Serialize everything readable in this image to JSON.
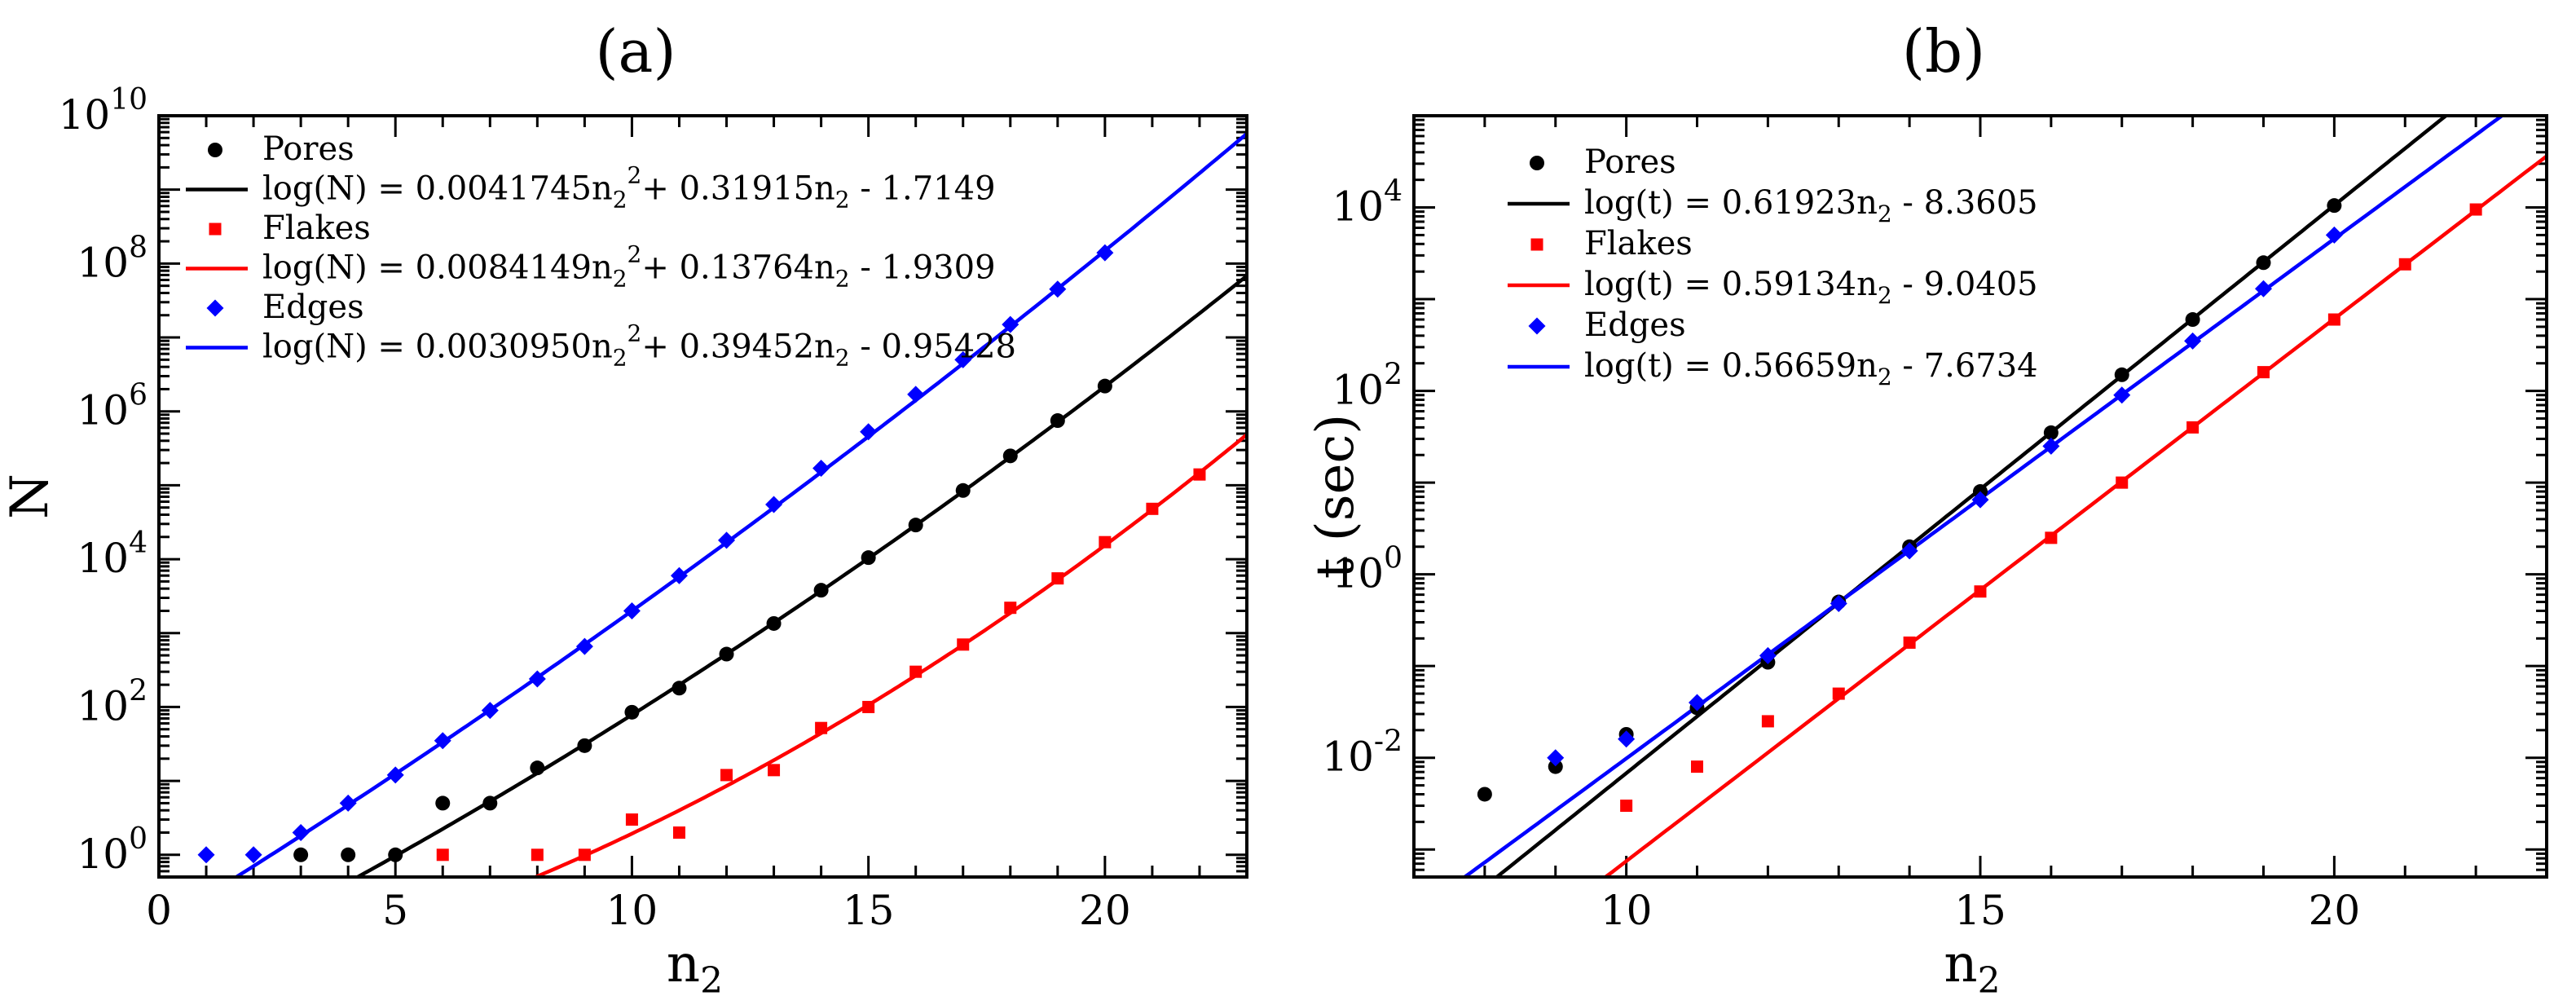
{
  "chart_data": [
    {
      "type": "scatter",
      "panel_label": "(a)",
      "xlabel": "n",
      "xlabel_sub": "2",
      "ylabel": "N",
      "y_scale": "log",
      "xlim": [
        0,
        23
      ],
      "ylim_exp": [
        -0.3,
        10
      ],
      "x_ticks": [
        0,
        5,
        10,
        15,
        20
      ],
      "y_tick_exps": [
        0,
        2,
        4,
        6,
        8,
        10
      ],
      "colors": {
        "Pores": "#000000",
        "Flakes": "#ff0000",
        "Edges": "#0000ff"
      },
      "legend": [
        {
          "name": "Pores",
          "kind": "marker",
          "marker": "circle"
        },
        {
          "name": "log(N) = 0.0041745n2^2 + 0.31915n2 - 1.7149",
          "kind": "line",
          "series": "Pores",
          "fit_pre": "log(N) = 0.0041745n",
          "fit_sup": "2",
          "fit_post": "+ 0.31915n",
          "fit_post2": " - 1.7149"
        },
        {
          "name": "Flakes",
          "kind": "marker",
          "marker": "square"
        },
        {
          "name": "log(N) = 0.0084149n2^2 + 0.13764n2 - 1.9309",
          "kind": "line",
          "series": "Flakes",
          "fit_pre": "log(N) = 0.0084149n",
          "fit_sup": "2",
          "fit_post": "+ 0.13764n",
          "fit_post2": " - 1.9309"
        },
        {
          "name": "Edges",
          "kind": "marker",
          "marker": "diamond"
        },
        {
          "name": "log(N) = 0.0030950n2^2 + 0.39452n2 - 0.95428",
          "kind": "line",
          "series": "Edges",
          "fit_pre": "log(N) = 0.0030950n",
          "fit_sup": "2",
          "fit_post": "+ 0.39452n",
          "fit_post2": " - 0.95428"
        }
      ],
      "series": [
        {
          "name": "Pores",
          "marker": "circle",
          "points": [
            [
              3,
              1
            ],
            [
              4,
              1
            ],
            [
              5,
              1
            ],
            [
              6,
              5
            ],
            [
              7,
              5
            ],
            [
              8,
              15
            ],
            [
              9,
              30
            ],
            [
              10,
              85
            ],
            [
              11,
              180
            ],
            [
              12,
              520
            ],
            [
              13,
              1350
            ],
            [
              14,
              3800
            ],
            [
              15,
              10500
            ],
            [
              16,
              29000
            ],
            [
              17,
              85000
            ],
            [
              18,
              250000
            ],
            [
              19,
              750000
            ],
            [
              20,
              2200000
            ]
          ]
        },
        {
          "name": "Flakes",
          "marker": "square",
          "points": [
            [
              6,
              1
            ],
            [
              8,
              1
            ],
            [
              9,
              1
            ],
            [
              10,
              3
            ],
            [
              11,
              2
            ],
            [
              12,
              12
            ],
            [
              13,
              14
            ],
            [
              14,
              52
            ],
            [
              15,
              100
            ],
            [
              16,
              300
            ],
            [
              17,
              700
            ],
            [
              18,
              2200
            ],
            [
              19,
              5500
            ],
            [
              20,
              17000
            ],
            [
              21,
              48000
            ],
            [
              22,
              140000
            ]
          ]
        },
        {
          "name": "Edges",
          "marker": "diamond",
          "points": [
            [
              1,
              1
            ],
            [
              2,
              1
            ],
            [
              3,
              2
            ],
            [
              4,
              5
            ],
            [
              5,
              12
            ],
            [
              6,
              35
            ],
            [
              7,
              90
            ],
            [
              8,
              240
            ],
            [
              9,
              660
            ],
            [
              10,
              2000
            ],
            [
              11,
              6000
            ],
            [
              12,
              18000
            ],
            [
              13,
              55000
            ],
            [
              14,
              170000
            ],
            [
              15,
              530000
            ],
            [
              16,
              1700000
            ],
            [
              17,
              5000000
            ],
            [
              18,
              15000000
            ],
            [
              19,
              45000000
            ],
            [
              20,
              140000000
            ]
          ]
        }
      ],
      "fits": [
        {
          "series": "Pores",
          "form": "quadratic_log10",
          "coef": [
            0.0041745,
            0.31915,
            -1.7149
          ],
          "x_range": [
            3.8,
            23
          ]
        },
        {
          "series": "Flakes",
          "form": "quadratic_log10",
          "coef": [
            0.0084149,
            0.13764,
            -1.9309
          ],
          "x_range": [
            7.8,
            23
          ]
        },
        {
          "series": "Edges",
          "form": "quadratic_log10",
          "coef": [
            0.003095,
            0.39452,
            -0.95428
          ],
          "x_range": [
            1.6,
            23
          ]
        }
      ]
    },
    {
      "type": "scatter",
      "panel_label": "(b)",
      "xlabel": "n",
      "xlabel_sub": "2",
      "ylabel": "t (sec)",
      "y_scale": "log",
      "xlim": [
        7,
        23
      ],
      "ylim_exp": [
        -3.3,
        5
      ],
      "x_ticks": [
        10,
        15,
        20
      ],
      "y_tick_exps": [
        -2,
        0,
        2,
        4
      ],
      "colors": {
        "Pores": "#000000",
        "Flakes": "#ff0000",
        "Edges": "#0000ff"
      },
      "legend": [
        {
          "name": "Pores",
          "kind": "marker",
          "marker": "circle"
        },
        {
          "name": "log(t) = 0.61923n2 - 8.3605",
          "kind": "line",
          "series": "Pores",
          "fit_pre": "log(t) = 0.61923n",
          "fit_sup": "",
          "fit_post": "",
          "fit_post2": " - 8.3605"
        },
        {
          "name": "Flakes",
          "kind": "marker",
          "marker": "square"
        },
        {
          "name": "log(t) = 0.59134n2 - 9.0405",
          "kind": "line",
          "series": "Flakes",
          "fit_pre": "log(t) = 0.59134n",
          "fit_sup": "",
          "fit_post": "",
          "fit_post2": " - 9.0405"
        },
        {
          "name": "Edges",
          "kind": "marker",
          "marker": "diamond"
        },
        {
          "name": "log(t) = 0.56659n2 - 7.6734",
          "kind": "line",
          "series": "Edges",
          "fit_pre": "log(t) = 0.56659n",
          "fit_sup": "",
          "fit_post": "",
          "fit_post2": " - 7.6734"
        }
      ],
      "series": [
        {
          "name": "Pores",
          "marker": "circle",
          "points": [
            [
              8,
              0.004
            ],
            [
              9,
              0.008
            ],
            [
              10,
              0.018
            ],
            [
              11,
              0.035
            ],
            [
              12,
              0.11
            ],
            [
              13,
              0.5
            ],
            [
              14,
              2.0
            ],
            [
              15,
              8.0
            ],
            [
              16,
              35
            ],
            [
              17,
              150
            ],
            [
              18,
              600
            ],
            [
              19,
              2500
            ],
            [
              20,
              10500
            ]
          ]
        },
        {
          "name": "Flakes",
          "marker": "square",
          "points": [
            [
              10,
              0.003
            ],
            [
              11,
              0.008
            ],
            [
              12,
              0.025
            ],
            [
              13,
              0.05
            ],
            [
              14,
              0.18
            ],
            [
              15,
              0.65
            ],
            [
              16,
              2.5
            ],
            [
              17,
              10
            ],
            [
              18,
              40
            ],
            [
              19,
              160
            ],
            [
              20,
              600
            ],
            [
              21,
              2400
            ],
            [
              22,
              9500
            ]
          ]
        },
        {
          "name": "Edges",
          "marker": "diamond",
          "points": [
            [
              9,
              0.01
            ],
            [
              10,
              0.016
            ],
            [
              11,
              0.04
            ],
            [
              12,
              0.13
            ],
            [
              13,
              0.48
            ],
            [
              14,
              1.8
            ],
            [
              15,
              6.5
            ],
            [
              16,
              25
            ],
            [
              17,
              90
            ],
            [
              18,
              350
            ],
            [
              19,
              1300
            ],
            [
              20,
              5000
            ]
          ]
        }
      ],
      "fits": [
        {
          "series": "Pores",
          "form": "linear_log10",
          "coef": [
            0.61923,
            -8.3605
          ],
          "x_range": [
            8.0,
            23
          ]
        },
        {
          "series": "Flakes",
          "form": "linear_log10",
          "coef": [
            0.59134,
            -9.0405
          ],
          "x_range": [
            8.0,
            23
          ]
        },
        {
          "series": "Edges",
          "form": "linear_log10",
          "coef": [
            0.56659,
            -7.6734
          ],
          "x_range": [
            7.5,
            23
          ]
        }
      ]
    }
  ]
}
